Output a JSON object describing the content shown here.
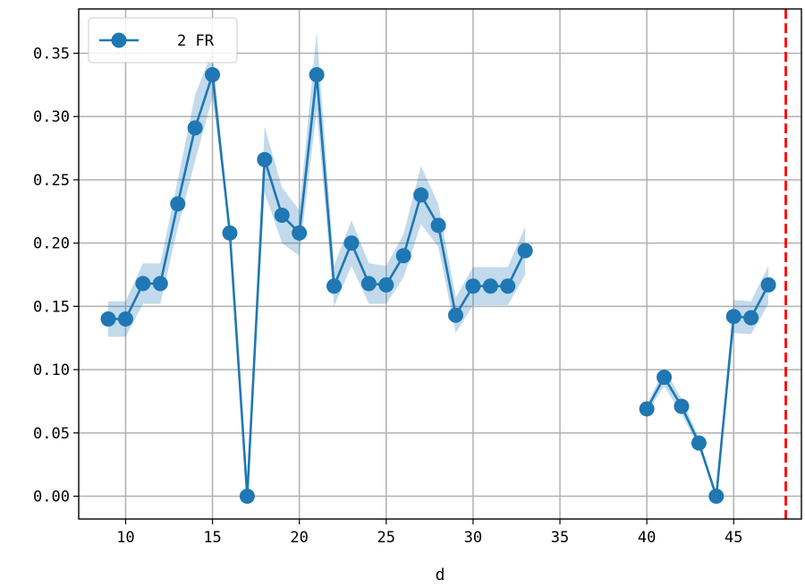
{
  "chart_data": {
    "type": "line",
    "xlabel": "d",
    "ylabel": "",
    "xlim": [
      7.3,
      48.9
    ],
    "ylim": [
      -0.018,
      0.385
    ],
    "xticks": [
      10,
      15,
      20,
      25,
      30,
      35,
      40,
      45
    ],
    "yticks": [
      0.0,
      0.05,
      0.1,
      0.15,
      0.2,
      0.25,
      0.3,
      0.35
    ],
    "ytick_labels": [
      "0.00",
      "0.05",
      "0.10",
      "0.15",
      "0.20",
      "0.25",
      "0.30",
      "0.35"
    ],
    "grid": true,
    "legend_position": "top-left",
    "series": [
      {
        "name": "2 FR",
        "color": "#1f77b4",
        "marker": "circle",
        "segments": [
          {
            "x": [
              9,
              10,
              11,
              12,
              13,
              14,
              15,
              16,
              17,
              18,
              19,
              20,
              21,
              22,
              23,
              24,
              25,
              26,
              27,
              28,
              29,
              30,
              31,
              32,
              33
            ],
            "y": [
              0.14,
              0.14,
              0.168,
              0.168,
              0.231,
              0.291,
              0.333,
              0.208,
              0.0,
              0.266,
              0.222,
              0.208,
              0.333,
              0.166,
              0.2,
              0.168,
              0.167,
              0.19,
              0.238,
              0.214,
              0.143,
              0.166,
              0.166,
              0.166,
              0.194
            ],
            "y_lower": [
              0.126,
              0.126,
              0.152,
              0.152,
              0.212,
              0.265,
              0.315,
              0.208,
              0.0,
              0.24,
              0.2,
              0.19,
              0.305,
              0.15,
              0.182,
              0.152,
              0.152,
              0.173,
              0.215,
              0.197,
              0.129,
              0.151,
              0.151,
              0.151,
              0.175
            ],
            "y_upper": [
              0.154,
              0.154,
              0.184,
              0.184,
              0.25,
              0.317,
              0.352,
              0.208,
              0.0,
              0.292,
              0.244,
              0.226,
              0.367,
              0.182,
              0.218,
              0.184,
              0.182,
              0.207,
              0.261,
              0.231,
              0.157,
              0.181,
              0.181,
              0.181,
              0.213
            ]
          },
          {
            "x": [
              40,
              41,
              42,
              43,
              44,
              45,
              46,
              47
            ],
            "y": [
              0.069,
              0.094,
              0.071,
              0.042,
              0.0,
              0.142,
              0.141,
              0.167
            ],
            "y_lower": [
              0.066,
              0.087,
              0.065,
              0.038,
              0.0,
              0.129,
              0.128,
              0.152
            ],
            "y_upper": [
              0.072,
              0.101,
              0.077,
              0.046,
              0.0,
              0.155,
              0.154,
              0.182
            ]
          }
        ]
      }
    ],
    "vline": {
      "x": 48,
      "color": "#ff0000",
      "style": "dashed"
    }
  }
}
